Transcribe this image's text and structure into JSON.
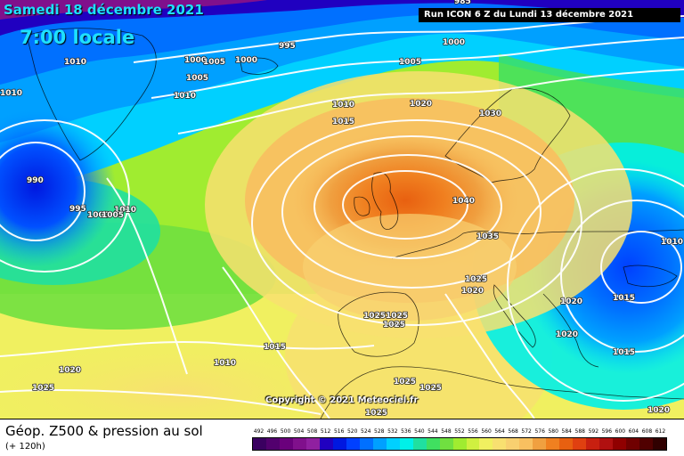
{
  "header": {
    "date": "Samedi 18 décembre 2021",
    "time": "7:00 locale",
    "run": "Run ICON 6 Z du Lundi 13 décembre 2021"
  },
  "copyright": "Copyright © 2021 Meteociel.fr",
  "footer": {
    "product": "Géop. Z500 & pression au sol",
    "lead_time": "(+ 120h)"
  },
  "legend": {
    "values": [
      "492",
      "496",
      "500",
      "504",
      "508",
      "512",
      "516",
      "520",
      "524",
      "528",
      "532",
      "536",
      "540",
      "544",
      "548",
      "552",
      "556",
      "560",
      "564",
      "568",
      "572",
      "576",
      "580",
      "584",
      "588",
      "592",
      "596",
      "600",
      "604",
      "608",
      "612"
    ],
    "colors": [
      "#3a0060",
      "#52006e",
      "#6a007c",
      "#80108c",
      "#9020a0",
      "#2000c0",
      "#0018e0",
      "#0040ff",
      "#0070ff",
      "#00a0ff",
      "#00d0ff",
      "#00f0e8",
      "#20e0a0",
      "#40e060",
      "#70e040",
      "#a0ec30",
      "#d0f040",
      "#f0f060",
      "#f8e070",
      "#f8d070",
      "#f8c060",
      "#f0a040",
      "#f08020",
      "#e86010",
      "#e04010",
      "#c82010",
      "#b01010",
      "#900000",
      "#700000",
      "#500000",
      "#300000"
    ]
  },
  "isobar_labels": [
    {
      "text": "995"
    },
    {
      "text": "985"
    },
    {
      "text": "1000"
    },
    {
      "text": "1005"
    },
    {
      "text": "1010"
    },
    {
      "text": "1000"
    },
    {
      "text": "1005"
    },
    {
      "text": "1000"
    },
    {
      "text": "1005"
    },
    {
      "text": "1010"
    },
    {
      "text": "1010"
    },
    {
      "text": "990"
    },
    {
      "text": "995"
    },
    {
      "text": "1000"
    },
    {
      "text": "1010"
    },
    {
      "text": "1005"
    },
    {
      "text": "1010"
    },
    {
      "text": "1015"
    },
    {
      "text": "1020"
    },
    {
      "text": "1030"
    },
    {
      "text": "1040"
    },
    {
      "text": "1035"
    },
    {
      "text": "1025"
    },
    {
      "text": "1020"
    },
    {
      "text": "1025"
    },
    {
      "text": "1025"
    },
    {
      "text": "1025"
    },
    {
      "text": "1015"
    },
    {
      "text": "1010"
    },
    {
      "text": "1020"
    },
    {
      "text": "1025"
    },
    {
      "text": "1025"
    },
    {
      "text": "1025"
    },
    {
      "text": "1025"
    },
    {
      "text": "1020"
    },
    {
      "text": "1020"
    },
    {
      "text": "1015"
    },
    {
      "text": "1015"
    },
    {
      "text": "1010"
    },
    {
      "text": "1020"
    }
  ]
}
